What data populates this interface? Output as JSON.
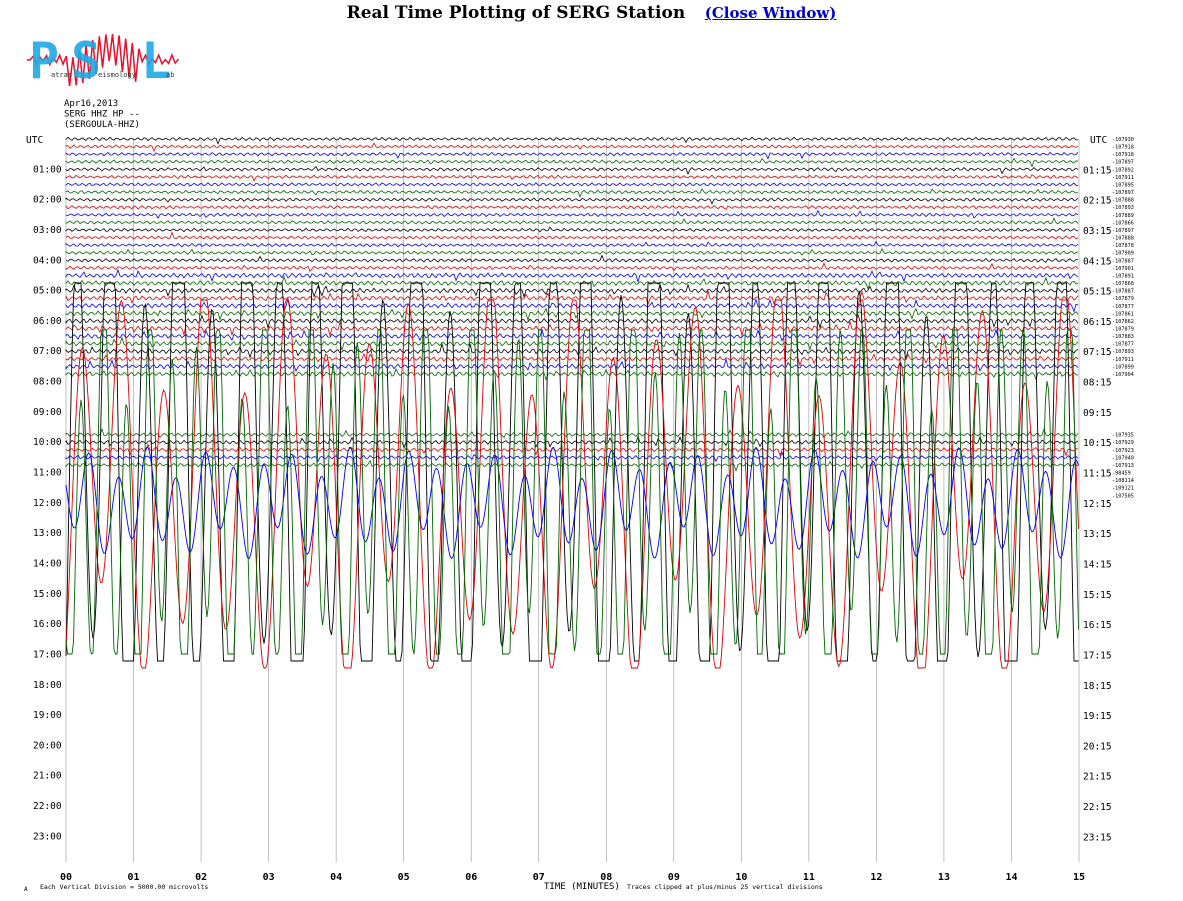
{
  "header": {
    "title": "Real Time Plotting of SERG Station",
    "close_link": "(Close Window)"
  },
  "logo": {
    "letters": [
      "P",
      "S",
      "L"
    ],
    "words": [
      "atras",
      "eismology",
      "ab"
    ]
  },
  "chart_data": {
    "type": "line",
    "subtype": "helicorder",
    "station_header": [
      "Apr16,2013",
      "SERG HHZ HP --",
      "(SERGOULA-HHZ)"
    ],
    "left_axis_title": "UTC",
    "right_axis_title": "UTC",
    "hour_labels_left": [
      "01:00",
      "02:00",
      "03:00",
      "04:00",
      "05:00",
      "06:00",
      "07:00",
      "08:00",
      "09:00",
      "10:00",
      "11:00",
      "12:00",
      "13:00",
      "14:00",
      "15:00",
      "16:00",
      "17:00",
      "18:00",
      "19:00",
      "20:00",
      "21:00",
      "22:00",
      "23:00"
    ],
    "hour_labels_right": [
      "01:15",
      "02:15",
      "03:15",
      "04:15",
      "05:15",
      "06:15",
      "07:15",
      "08:15",
      "09:15",
      "10:15",
      "11:15",
      "12:15",
      "13:15",
      "14:15",
      "15:15",
      "16:15",
      "17:15",
      "18:15",
      "19:15",
      "20:15",
      "21:15",
      "22:15",
      "23:15"
    ],
    "x_ticks": [
      "00",
      "01",
      "02",
      "03",
      "04",
      "05",
      "06",
      "07",
      "08",
      "09",
      "10",
      "11",
      "12",
      "13",
      "14",
      "15"
    ],
    "xlabel": "TIME (MINUTES)",
    "trace_colors": [
      "#000000",
      "#dd0000",
      "#0000ee",
      "#006600"
    ],
    "trace_mean_values": [
      "-107930",
      "-107918",
      "-107918",
      "-107897",
      "-107892",
      "-107911",
      "-107895",
      "-107897",
      "-107888",
      "-107893",
      "-107889",
      "-107866",
      "-107897",
      "-107888",
      "-107878",
      "-107909",
      "-107887",
      "-107901",
      "-107891",
      "-107868",
      "-107887",
      "-107879",
      "-107877",
      "-107861",
      "-107862",
      "-107879",
      "-107883",
      "-107877",
      "-107893",
      "-107911",
      "-107899",
      "-107904"
    ],
    "trace_mean_values_late": [
      "-107935",
      "-107929",
      "-107923",
      "-107940",
      "-107913",
      "-98459",
      "-108114",
      "-109121",
      "-107505"
    ],
    "annotations": {
      "clip_note": "Traces clipped at plus/minus 25 vertical divisions",
      "division_note": "Each Vertical Division = 5000.00 microvolts",
      "small_mark": "A"
    }
  }
}
